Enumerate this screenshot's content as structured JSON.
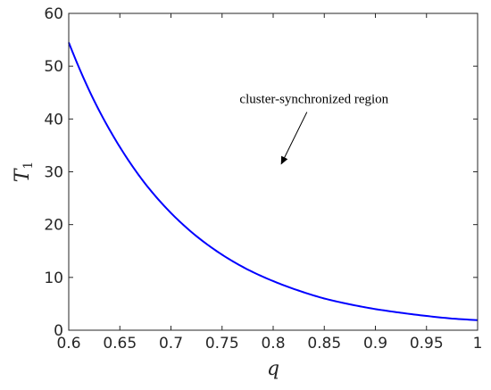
{
  "chart_data": {
    "type": "line",
    "title": "",
    "xlabel": "q",
    "ylabel": "T",
    "ylabel_subscript": "1",
    "xlim": [
      0.6,
      1.0
    ],
    "ylim": [
      0,
      60
    ],
    "xticks": [
      0.6,
      0.65,
      0.7,
      0.75,
      0.8,
      0.85,
      0.9,
      0.95,
      1.0
    ],
    "xtick_labels": [
      "0.6",
      "0.65",
      "0.7",
      "0.75",
      "0.8",
      "0.85",
      "0.9",
      "0.95",
      "1"
    ],
    "yticks": [
      0,
      10,
      20,
      30,
      40,
      50,
      60
    ],
    "ytick_labels": [
      "0",
      "10",
      "20",
      "30",
      "40",
      "50",
      "60"
    ],
    "grid": false,
    "series": [
      {
        "color": "#0000ff",
        "x": [
          0.6,
          0.625,
          0.65,
          0.675,
          0.7,
          0.725,
          0.75,
          0.775,
          0.8,
          0.825,
          0.85,
          0.875,
          0.9,
          0.925,
          0.95,
          0.975,
          1.0
        ],
        "y": [
          54.5,
          43.4,
          34.7,
          27.7,
          22.2,
          17.8,
          14.3,
          11.5,
          9.3,
          7.5,
          6.0,
          4.9,
          4.0,
          3.3,
          2.7,
          2.2,
          1.9
        ]
      }
    ],
    "annotations": [
      {
        "text": "cluster-synchronized region",
        "x": 0.84,
        "y": 43.0,
        "arrow_to": [
          0.808,
          31.5
        ]
      }
    ]
  }
}
